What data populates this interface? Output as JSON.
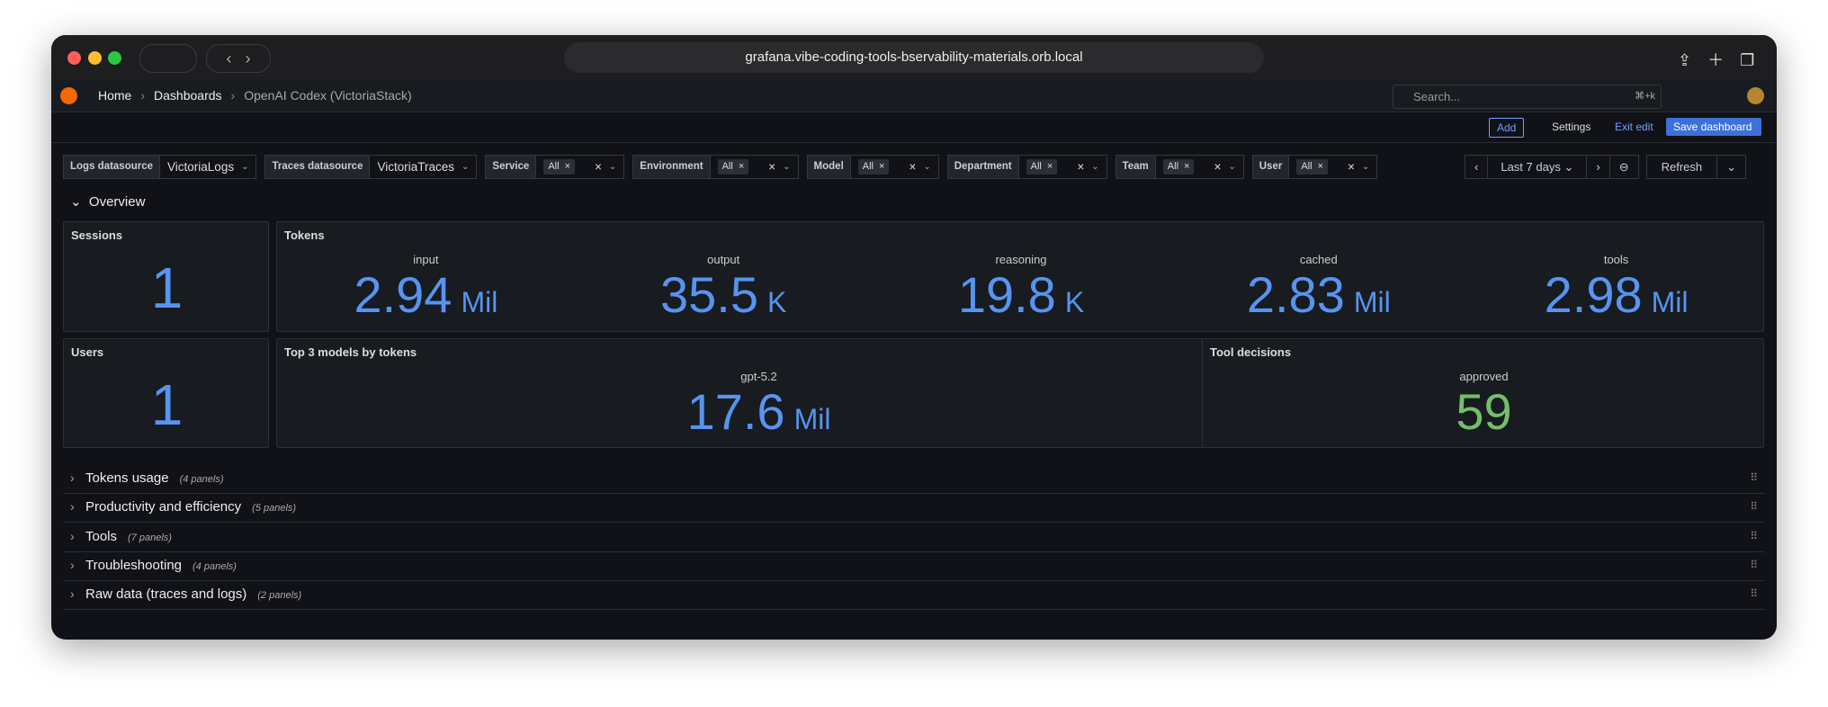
{
  "browser": {
    "url": "grafana.vibe-coding-tools-bservability-materials.orb.local"
  },
  "nav": {
    "breadcrumbs": [
      "Home",
      "Dashboards",
      "OpenAI Codex (VictoriaStack)"
    ],
    "search_placeholder": "Search...",
    "search_shortcut": "⌘+k"
  },
  "toolbar": {
    "add": "Add",
    "settings": "Settings",
    "exit_edit": "Exit edit",
    "save": "Save dashboard"
  },
  "variables": [
    {
      "label": "Logs datasource",
      "value": "VictoriaLogs",
      "multi": false
    },
    {
      "label": "Traces datasource",
      "value": "VictoriaTraces",
      "multi": false
    },
    {
      "label": "Service",
      "value": "All",
      "multi": true
    },
    {
      "label": "Environment",
      "value": "All",
      "multi": true
    },
    {
      "label": "Model",
      "value": "All",
      "multi": true
    },
    {
      "label": "Department",
      "value": "All",
      "multi": true
    },
    {
      "label": "Team",
      "value": "All",
      "multi": true
    },
    {
      "label": "User",
      "value": "All",
      "multi": true
    }
  ],
  "time_range": "Last 7 days",
  "refresh": "Refresh",
  "overview": {
    "title": "Overview",
    "panels": [
      {
        "title": "Sessions",
        "stats": [
          {
            "value": 1,
            "color": "#5794f2"
          }
        ]
      },
      {
        "title": "Tokens",
        "stats": [
          {
            "name": "input",
            "value": 2.94,
            "unit": "Mil",
            "color": "#5794f2"
          },
          {
            "name": "output",
            "value": 35.5,
            "unit": "K",
            "color": "#5794f2"
          },
          {
            "name": "reasoning",
            "value": 19.8,
            "unit": "K",
            "color": "#5794f2"
          },
          {
            "name": "cached",
            "value": 2.83,
            "unit": "Mil",
            "color": "#5794f2"
          },
          {
            "name": "tools",
            "value": 2.98,
            "unit": "Mil",
            "color": "#5794f2"
          }
        ]
      },
      {
        "title": "Users",
        "stats": [
          {
            "value": 1,
            "color": "#5794f2"
          }
        ]
      },
      {
        "title": "Top 3 models by tokens",
        "stats": [
          {
            "name": "gpt-5.2",
            "value": 17.6,
            "unit": "Mil",
            "color": "#5794f2"
          }
        ]
      },
      {
        "title": "Tool decisions",
        "stats": [
          {
            "name": "approved",
            "value": 59,
            "color": "#73bf69"
          }
        ]
      }
    ]
  },
  "rows": [
    {
      "title": "Tokens usage",
      "count": "(4 panels)"
    },
    {
      "title": "Productivity and efficiency",
      "count": "(5 panels)"
    },
    {
      "title": "Tools",
      "count": "(7 panels)"
    },
    {
      "title": "Troubleshooting",
      "count": "(4 panels)"
    },
    {
      "title": "Raw data (traces and logs)",
      "count": "(2 panels)"
    }
  ]
}
